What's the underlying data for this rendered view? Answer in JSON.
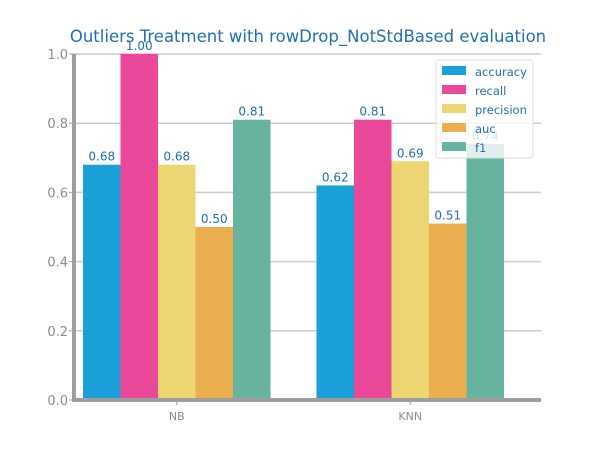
{
  "chart_data": {
    "type": "bar",
    "title": "Outliers Treatment with rowDrop_NotStdBased evaluation",
    "xlabel": "",
    "ylabel": "",
    "categories": [
      "NB",
      "KNN"
    ],
    "series": [
      {
        "name": "accuracy",
        "values": [
          0.68,
          0.62
        ],
        "color": "#1a9fd9"
      },
      {
        "name": "recall",
        "values": [
          1.0,
          0.81
        ],
        "color": "#ea4898"
      },
      {
        "name": "precision",
        "values": [
          0.68,
          0.69
        ],
        "color": "#edd574"
      },
      {
        "name": "auc",
        "values": [
          0.5,
          0.51
        ],
        "color": "#ebaf4f"
      },
      {
        "name": "f1",
        "values": [
          0.81,
          0.74
        ],
        "color": "#66b39f"
      }
    ],
    "ylim": [
      0,
      1.0
    ],
    "yticks": [
      0.0,
      0.2,
      0.4,
      0.6,
      0.8,
      1.0
    ],
    "grid": "horizontal",
    "legend_position": "top-right",
    "colors": {
      "title": "#1f6fb2",
      "data_label": "#1f6fb2",
      "legend_text": "#1f6fb2",
      "tick_text": "#8c8c8c",
      "axis": "#9e9e9e",
      "grid": "#cccccc"
    }
  }
}
